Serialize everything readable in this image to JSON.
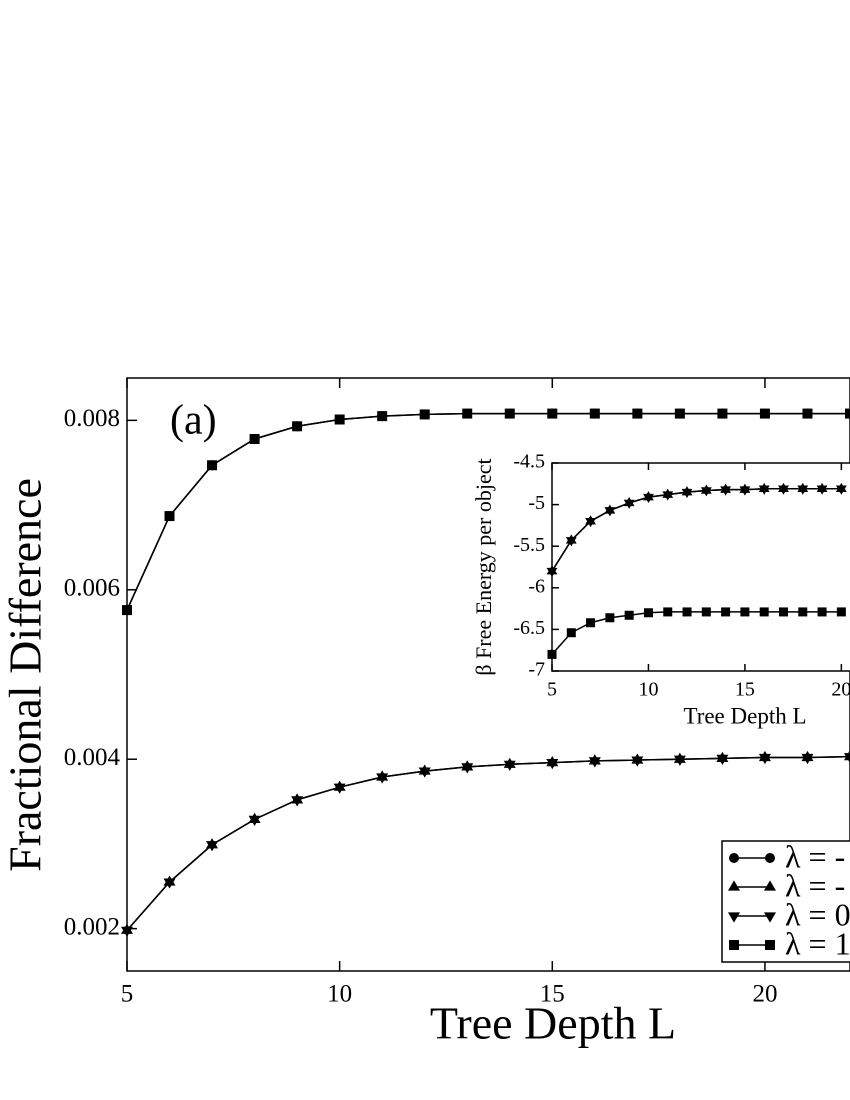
{
  "chart_data": [
    {
      "type": "line",
      "annotation": "(a)",
      "x_label": "Tree Depth L",
      "y_label": "Fractional Difference",
      "x": [
        5,
        6,
        7,
        8,
        9,
        10,
        11,
        12,
        13,
        14,
        15,
        16,
        17,
        18,
        19,
        20,
        21,
        22
      ],
      "xlim": [
        5,
        22
      ],
      "ylim": [
        0.0015,
        0.0085
      ],
      "xticks": [
        5,
        10,
        15,
        20
      ],
      "yticks": [
        0.002,
        0.004,
        0.006,
        0.008
      ],
      "legend": "lower right",
      "series": [
        {
          "name": "λ = -",
          "color": "#000000",
          "marker": "circle",
          "values": [
            0.00576,
            0.00687,
            0.00747,
            0.00778,
            0.00793,
            0.00801,
            0.00805,
            0.00807,
            0.00808,
            0.00808,
            0.00808,
            0.00808,
            0.00808,
            0.00808,
            0.00808,
            0.00808,
            0.00808,
            0.00808
          ]
        },
        {
          "name": "λ = -",
          "color": "#000000",
          "marker": "triangle-up",
          "values": [
            0.00198,
            0.00255,
            0.00299,
            0.00329,
            0.00352,
            0.00367,
            0.00379,
            0.00386,
            0.00391,
            0.00394,
            0.00396,
            0.00398,
            0.00399,
            0.004,
            0.00401,
            0.00402,
            0.00402,
            0.00403
          ]
        },
        {
          "name": "λ = 0",
          "color": "#000000",
          "marker": "triangle-down",
          "values": [
            0.00198,
            0.00255,
            0.00299,
            0.00329,
            0.00352,
            0.00367,
            0.00379,
            0.00386,
            0.00391,
            0.00394,
            0.00396,
            0.00398,
            0.00399,
            0.004,
            0.00401,
            0.00402,
            0.00402,
            0.00403
          ]
        },
        {
          "name": "λ = 1",
          "color": "#000000",
          "marker": "square",
          "values": [
            0.00576,
            0.00687,
            0.00747,
            0.00778,
            0.00793,
            0.00801,
            0.00805,
            0.00807,
            0.00808,
            0.00808,
            0.00808,
            0.00808,
            0.00808,
            0.00808,
            0.00808,
            0.00808,
            0.00808,
            0.00808
          ]
        }
      ]
    },
    {
      "type": "line",
      "x_label": "Tree Depth L",
      "y_label": "β Free Energy per object",
      "x": [
        5,
        6,
        7,
        8,
        9,
        10,
        11,
        12,
        13,
        14,
        15,
        16,
        17,
        18,
        19,
        20
      ],
      "xlim": [
        5,
        20.5
      ],
      "ylim": [
        -7,
        -4.5
      ],
      "xticks": [
        5,
        10,
        15,
        20
      ],
      "yticks": [
        -7,
        -6.5,
        -6,
        -5.5,
        -5,
        -4.5
      ],
      "series": [
        {
          "color": "#000000",
          "marker": "triangle-up",
          "values": [
            -5.8,
            -5.43,
            -5.2,
            -5.07,
            -4.98,
            -4.91,
            -4.88,
            -4.85,
            -4.83,
            -4.82,
            -4.82,
            -4.81,
            -4.81,
            -4.81,
            -4.81,
            -4.81
          ]
        },
        {
          "color": "#000000",
          "marker": "triangle-down",
          "values": [
            -5.8,
            -5.43,
            -5.2,
            -5.07,
            -4.98,
            -4.91,
            -4.88,
            -4.85,
            -4.83,
            -4.82,
            -4.82,
            -4.81,
            -4.81,
            -4.81,
            -4.81,
            -4.81
          ]
        },
        {
          "color": "#000000",
          "marker": "square",
          "values": [
            -6.8,
            -6.54,
            -6.42,
            -6.36,
            -6.33,
            -6.3,
            -6.29,
            -6.29,
            -6.29,
            -6.29,
            -6.29,
            -6.29,
            -6.29,
            -6.29,
            -6.29,
            -6.29
          ]
        }
      ]
    }
  ]
}
